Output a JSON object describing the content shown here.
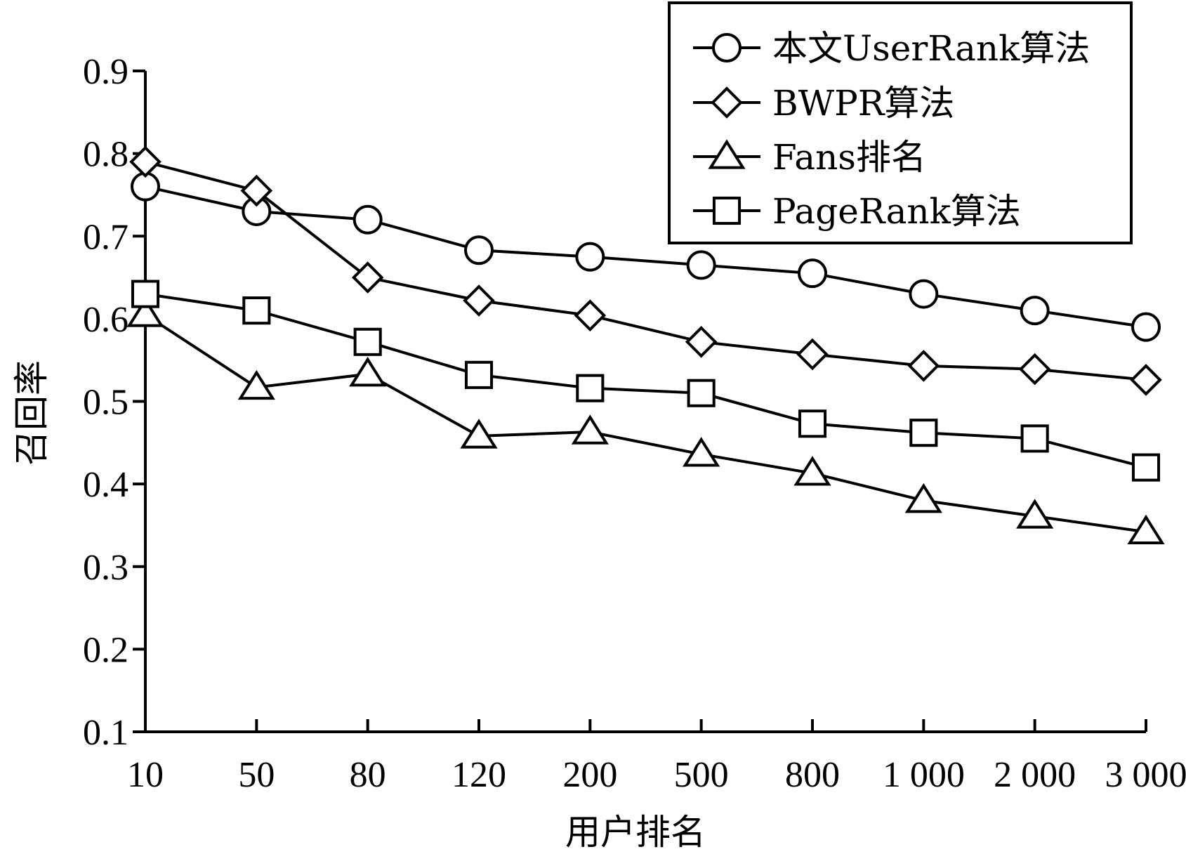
{
  "chart_data": {
    "type": "line",
    "title": "",
    "xlabel": "用户排名",
    "ylabel": "召回率",
    "categories": [
      "10",
      "50",
      "80",
      "120",
      "200",
      "500",
      "800",
      "1 000",
      "2 000",
      "3 000"
    ],
    "y_ticks": [
      "0.1",
      "0.2",
      "0.3",
      "0.4",
      "0.5",
      "0.6",
      "0.7",
      "0.8",
      "0.9"
    ],
    "ylim": [
      0.1,
      0.9
    ],
    "grid": false,
    "legend_position": "top-right",
    "series": [
      {
        "name": "本文UserRank算法",
        "marker": "circle",
        "values": [
          0.76,
          0.73,
          0.72,
          0.683,
          0.675,
          0.665,
          0.655,
          0.63,
          0.61,
          0.59
        ]
      },
      {
        "name": "BWPR算法",
        "marker": "diamond",
        "values": [
          0.79,
          0.755,
          0.65,
          0.622,
          0.604,
          0.572,
          0.557,
          0.543,
          0.539,
          0.526
        ]
      },
      {
        "name": "Fans排名",
        "marker": "triangle",
        "values": [
          0.605,
          0.517,
          0.533,
          0.458,
          0.463,
          0.436,
          0.413,
          0.38,
          0.361,
          0.342
        ]
      },
      {
        "name": "PageRank算法",
        "marker": "square",
        "values": [
          0.63,
          0.61,
          0.572,
          0.532,
          0.516,
          0.51,
          0.473,
          0.462,
          0.455,
          0.42
        ]
      }
    ]
  }
}
